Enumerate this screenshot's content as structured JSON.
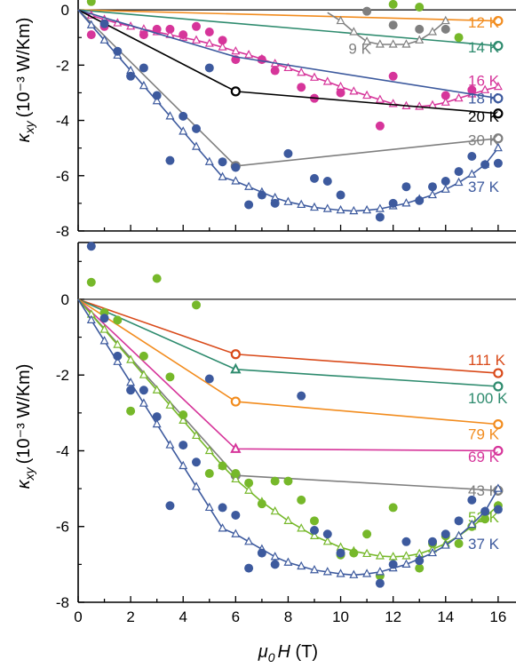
{
  "chart_data": [
    {
      "type": "scatter",
      "panel": "top",
      "ylabel_symbol": "κ",
      "ylabel_sub": "xy",
      "ylabel_units": "(10⁻³ W/Km)",
      "xlim": [
        0,
        18
      ],
      "ylim": [
        -8,
        1
      ],
      "ytick_values": [
        0,
        -2,
        -4,
        -6,
        -8
      ],
      "ytick_labels": [
        "0",
        "-2",
        "-4",
        "-6",
        "-8"
      ],
      "series": [
        {
          "name": "12 K",
          "color": "#f28c1e",
          "x": [
            0,
            16
          ],
          "y": [
            0,
            -0.4
          ],
          "marker": "open-circle-end",
          "label_y": -0.45
        },
        {
          "name": "14 K",
          "color": "#2e8b6e",
          "x": [
            0,
            16
          ],
          "y": [
            0,
            -1.3
          ],
          "marker": "open-circle-end",
          "label_y": -1.35
        },
        {
          "name": "16 K",
          "color": "#d6359a",
          "x": [
            0,
            0.5,
            1,
            1.5,
            2,
            2.5,
            3,
            3.5,
            4,
            4.5,
            5,
            5.5,
            6,
            6.5,
            7,
            7.5,
            8,
            8.5,
            9,
            9.5,
            10,
            10.5,
            11,
            11.5,
            12,
            12.5,
            13,
            13.5,
            14,
            14.5,
            15,
            15.5,
            16
          ],
          "y": [
            0,
            -0.2,
            -0.35,
            -0.48,
            -0.6,
            -0.7,
            -0.8,
            -0.9,
            -1.0,
            -1.1,
            -1.22,
            -1.35,
            -1.5,
            -1.63,
            -1.78,
            -1.95,
            -2.1,
            -2.27,
            -2.45,
            -2.6,
            -2.78,
            -2.95,
            -3.1,
            -3.25,
            -3.4,
            -3.48,
            -3.5,
            -3.45,
            -3.35,
            -3.2,
            -3.05,
            -2.9,
            -2.78
          ],
          "marker": "open-triangle",
          "label_y": -2.55
        },
        {
          "name": "16 K points",
          "color": "#d6359a",
          "x": [
            0.5,
            1,
            2.5,
            3,
            3.5,
            4,
            4.5,
            5,
            5.5,
            6,
            7,
            7.5,
            8.5,
            9,
            10,
            11.5,
            12,
            14,
            15
          ],
          "y": [
            -0.9,
            -0.6,
            -0.9,
            -0.7,
            -0.7,
            -0.9,
            -0.6,
            -0.8,
            -1.1,
            -1.8,
            -1.8,
            -2.2,
            -2.8,
            -3.2,
            -3.0,
            -4.2,
            -2.4,
            -3.1,
            -2.9
          ],
          "marker": "filled-circle"
        },
        {
          "name": "18 K",
          "color": "#3d5a9e",
          "x": [
            0,
            6,
            16
          ],
          "y": [
            0,
            -1.7,
            -3.2
          ],
          "marker": "open-circle-end",
          "label_y": -3.2
        },
        {
          "name": "20 K",
          "color": "#000000",
          "x": [
            0,
            6,
            16
          ],
          "y": [
            0,
            -2.95,
            -3.75
          ],
          "marker": "open-circle-mid-end",
          "label_y": -3.85
        },
        {
          "name": "30 K",
          "color": "#7f7f7f",
          "x": [
            0,
            6,
            16
          ],
          "y": [
            0,
            -5.65,
            -4.65
          ],
          "marker": "filled-circle-mid-open-end",
          "label_y": -4.7
        },
        {
          "name": "9 K",
          "color": "#7f7f7f",
          "x": [
            9.5,
            10,
            10.5,
            11,
            11.5,
            12,
            12.5,
            13,
            13.5,
            14
          ],
          "y": [
            -0.1,
            -0.4,
            -0.8,
            -1.15,
            -1.25,
            -1.25,
            -1.25,
            -1.1,
            -0.8,
            -0.4
          ],
          "marker": "open-triangle",
          "label_x": 10.3,
          "label_y": -1.4
        },
        {
          "name": "9 K points",
          "color": "#7f7f7f",
          "x": [
            11,
            12,
            13,
            14
          ],
          "y": [
            -0.05,
            -0.55,
            -0.7,
            -0.7
          ],
          "marker": "filled-circle"
        },
        {
          "name": "green points top",
          "color": "#76b82a",
          "x": [
            0.5,
            12,
            13,
            14.5
          ],
          "y": [
            0.3,
            0.2,
            0.1,
            -1.0
          ],
          "marker": "filled-circle"
        },
        {
          "name": "37 K",
          "color": "#3d5a9e",
          "x": [
            0,
            0.5,
            1,
            1.5,
            2,
            2.5,
            3,
            3.5,
            4,
            4.5,
            5,
            5.5,
            6,
            6.5,
            7,
            7.5,
            8,
            8.5,
            9,
            9.5,
            10,
            10.5,
            11,
            11.5,
            12,
            12.5,
            13,
            13.5,
            14,
            14.5,
            15,
            15.5,
            16
          ],
          "y": [
            0,
            -0.55,
            -1.1,
            -1.65,
            -2.2,
            -2.75,
            -3.3,
            -3.85,
            -4.4,
            -4.95,
            -5.5,
            -6.05,
            -6.2,
            -6.4,
            -6.6,
            -6.8,
            -6.95,
            -7.05,
            -7.15,
            -7.2,
            -7.25,
            -7.28,
            -7.25,
            -7.2,
            -7.1,
            -7.0,
            -6.85,
            -6.7,
            -6.5,
            -6.25,
            -5.95,
            -5.6,
            -5.0
          ],
          "marker": "open-triangle",
          "label_y": -6.4
        },
        {
          "name": "37 K points",
          "color": "#3d5a9e",
          "x": [
            1,
            1.5,
            2,
            2.5,
            3,
            3.5,
            4,
            4.5,
            5,
            5.5,
            6,
            6.5,
            7,
            7.5,
            8,
            9,
            9.5,
            10,
            11.5,
            12,
            12.5,
            13,
            13.5,
            14,
            14.5,
            15,
            15.5,
            16
          ],
          "y": [
            -0.5,
            -1.5,
            -2.4,
            -2.1,
            -3.1,
            -5.45,
            -3.85,
            -4.3,
            -2.1,
            -5.5,
            -5.7,
            -7.05,
            -6.7,
            -7.0,
            -5.2,
            -6.1,
            -6.2,
            -6.7,
            -7.5,
            -7.0,
            -6.4,
            -6.9,
            -6.4,
            -6.2,
            -5.85,
            -5.3,
            -5.6,
            -5.55
          ],
          "marker": "filled-circle"
        }
      ]
    },
    {
      "type": "scatter",
      "panel": "bottom",
      "ylabel_symbol": "κ",
      "ylabel_sub": "xy",
      "ylabel_units": "(10⁻³ W/Km)",
      "xlabel_symbol": "μ",
      "xlabel_sub": "0",
      "xlabel_rest": "H (T)",
      "xlim": [
        0,
        18
      ],
      "ylim": [
        -8,
        1.5
      ],
      "xtick_values": [
        0,
        2,
        4,
        6,
        8,
        10,
        12,
        14,
        16
      ],
      "xtick_labels": [
        "0",
        "2",
        "4",
        "6",
        "8",
        "10",
        "12",
        "14",
        "16"
      ],
      "ytick_values": [
        0,
        -2,
        -4,
        -6,
        -8
      ],
      "ytick_labels": [
        "0",
        "-2",
        "-4",
        "-6",
        "-8"
      ],
      "series": [
        {
          "name": "111 K",
          "color": "#d94a1a",
          "x": [
            0,
            6,
            16
          ],
          "y": [
            0,
            -1.45,
            -1.95
          ],
          "marker": "open-circle-mid-end",
          "label_y": -1.6
        },
        {
          "name": "100 K",
          "color": "#2e8b6e",
          "x": [
            0,
            6,
            16
          ],
          "y": [
            0,
            -1.85,
            -2.3
          ],
          "marker": "open-triangle-mid-circle-end",
          "label_y": -2.6
        },
        {
          "name": "79 K",
          "color": "#f28c1e",
          "x": [
            0,
            6,
            16
          ],
          "y": [
            0,
            -2.7,
            -3.3
          ],
          "marker": "open-circle-mid-end",
          "label_y": -3.55
        },
        {
          "name": "69 K",
          "color": "#d6359a",
          "x": [
            0,
            6,
            16
          ],
          "y": [
            0,
            -3.95,
            -4.0
          ],
          "marker": "open-triangle-mid-circle-end",
          "label_y": -4.15
        },
        {
          "name": "43 K",
          "color": "#7f7f7f",
          "x": [
            0,
            6,
            16
          ],
          "y": [
            0,
            -4.65,
            -5.05
          ],
          "marker": "filled-circle-mid-open-end",
          "label_y": -5.05
        },
        {
          "name": "52 K",
          "color": "#76b82a",
          "x": [
            0,
            0.5,
            1,
            1.5,
            2,
            2.5,
            3,
            3.5,
            4,
            4.5,
            5,
            5.5,
            6,
            6.5,
            7,
            7.5,
            8,
            8.5,
            9,
            9.5,
            10,
            10.5,
            11,
            11.5,
            12,
            12.5,
            13,
            13.5,
            14,
            14.5,
            15,
            15.5,
            16
          ],
          "y": [
            0,
            -0.4,
            -0.8,
            -1.2,
            -1.6,
            -2.0,
            -2.4,
            -2.8,
            -3.2,
            -3.6,
            -4.0,
            -4.4,
            -4.75,
            -5.05,
            -5.35,
            -5.6,
            -5.85,
            -6.05,
            -6.25,
            -6.4,
            -6.55,
            -6.65,
            -6.72,
            -6.78,
            -6.8,
            -6.78,
            -6.72,
            -6.6,
            -6.45,
            -6.25,
            -6.0,
            -5.75,
            -5.45
          ],
          "marker": "open-triangle",
          "label_y": -5.75
        },
        {
          "name": "52 K points",
          "color": "#76b82a",
          "x": [
            0.5,
            1,
            1.5,
            2,
            2.5,
            3,
            3.5,
            4,
            4.5,
            5,
            5.5,
            6,
            6.5,
            7,
            7.5,
            8,
            8.5,
            9,
            10,
            10.5,
            11,
            11.5,
            12,
            13,
            13.5,
            14,
            14.5,
            15,
            15.5,
            16
          ],
          "y": [
            0.45,
            -0.35,
            -0.55,
            -2.95,
            -1.5,
            0.55,
            -2.05,
            -3.05,
            -0.15,
            -4.6,
            -4.4,
            -4.6,
            -4.85,
            -5.4,
            -4.8,
            -4.8,
            -5.3,
            -5.85,
            -6.75,
            -6.7,
            -6.2,
            -7.3,
            -5.5,
            -7.1,
            -6.45,
            -6.25,
            -6.45,
            -6.0,
            -5.8,
            -5.45
          ],
          "marker": "filled-circle"
        },
        {
          "name": "37 K",
          "color": "#3d5a9e",
          "x": [
            0,
            0.5,
            1,
            1.5,
            2,
            2.5,
            3,
            3.5,
            4,
            4.5,
            5,
            5.5,
            6,
            6.5,
            7,
            7.5,
            8,
            8.5,
            9,
            9.5,
            10,
            10.5,
            11,
            11.5,
            12,
            12.5,
            13,
            13.5,
            14,
            14.5,
            15,
            15.5,
            16
          ],
          "y": [
            0,
            -0.55,
            -1.1,
            -1.65,
            -2.2,
            -2.75,
            -3.3,
            -3.85,
            -4.4,
            -4.95,
            -5.5,
            -6.05,
            -6.2,
            -6.4,
            -6.6,
            -6.8,
            -6.95,
            -7.05,
            -7.15,
            -7.2,
            -7.25,
            -7.28,
            -7.25,
            -7.2,
            -7.1,
            -7.0,
            -6.85,
            -6.7,
            -6.5,
            -6.25,
            -5.95,
            -5.6,
            -5.0
          ],
          "marker": "open-triangle",
          "label_y": -6.45
        },
        {
          "name": "37 K points",
          "color": "#3d5a9e",
          "x": [
            0.5,
            1,
            1.5,
            2,
            2.5,
            3,
            3.5,
            4,
            4.5,
            5,
            5.5,
            6,
            6.5,
            7,
            7.5,
            8.5,
            9,
            9.5,
            10,
            11.5,
            12,
            12.5,
            13,
            13.5,
            14,
            14.5,
            15,
            15.5,
            16
          ],
          "y": [
            1.4,
            -0.5,
            -1.5,
            -2.4,
            -2.4,
            -3.1,
            -5.45,
            -3.85,
            -4.3,
            -2.1,
            -5.5,
            -5.7,
            -7.1,
            -6.7,
            -7.0,
            -2.55,
            -6.1,
            -6.2,
            -6.7,
            -7.5,
            -7.0,
            -6.4,
            -6.9,
            -6.4,
            -6.2,
            -5.85,
            -5.3,
            -5.6,
            -5.55
          ],
          "marker": "filled-circle"
        }
      ]
    }
  ]
}
